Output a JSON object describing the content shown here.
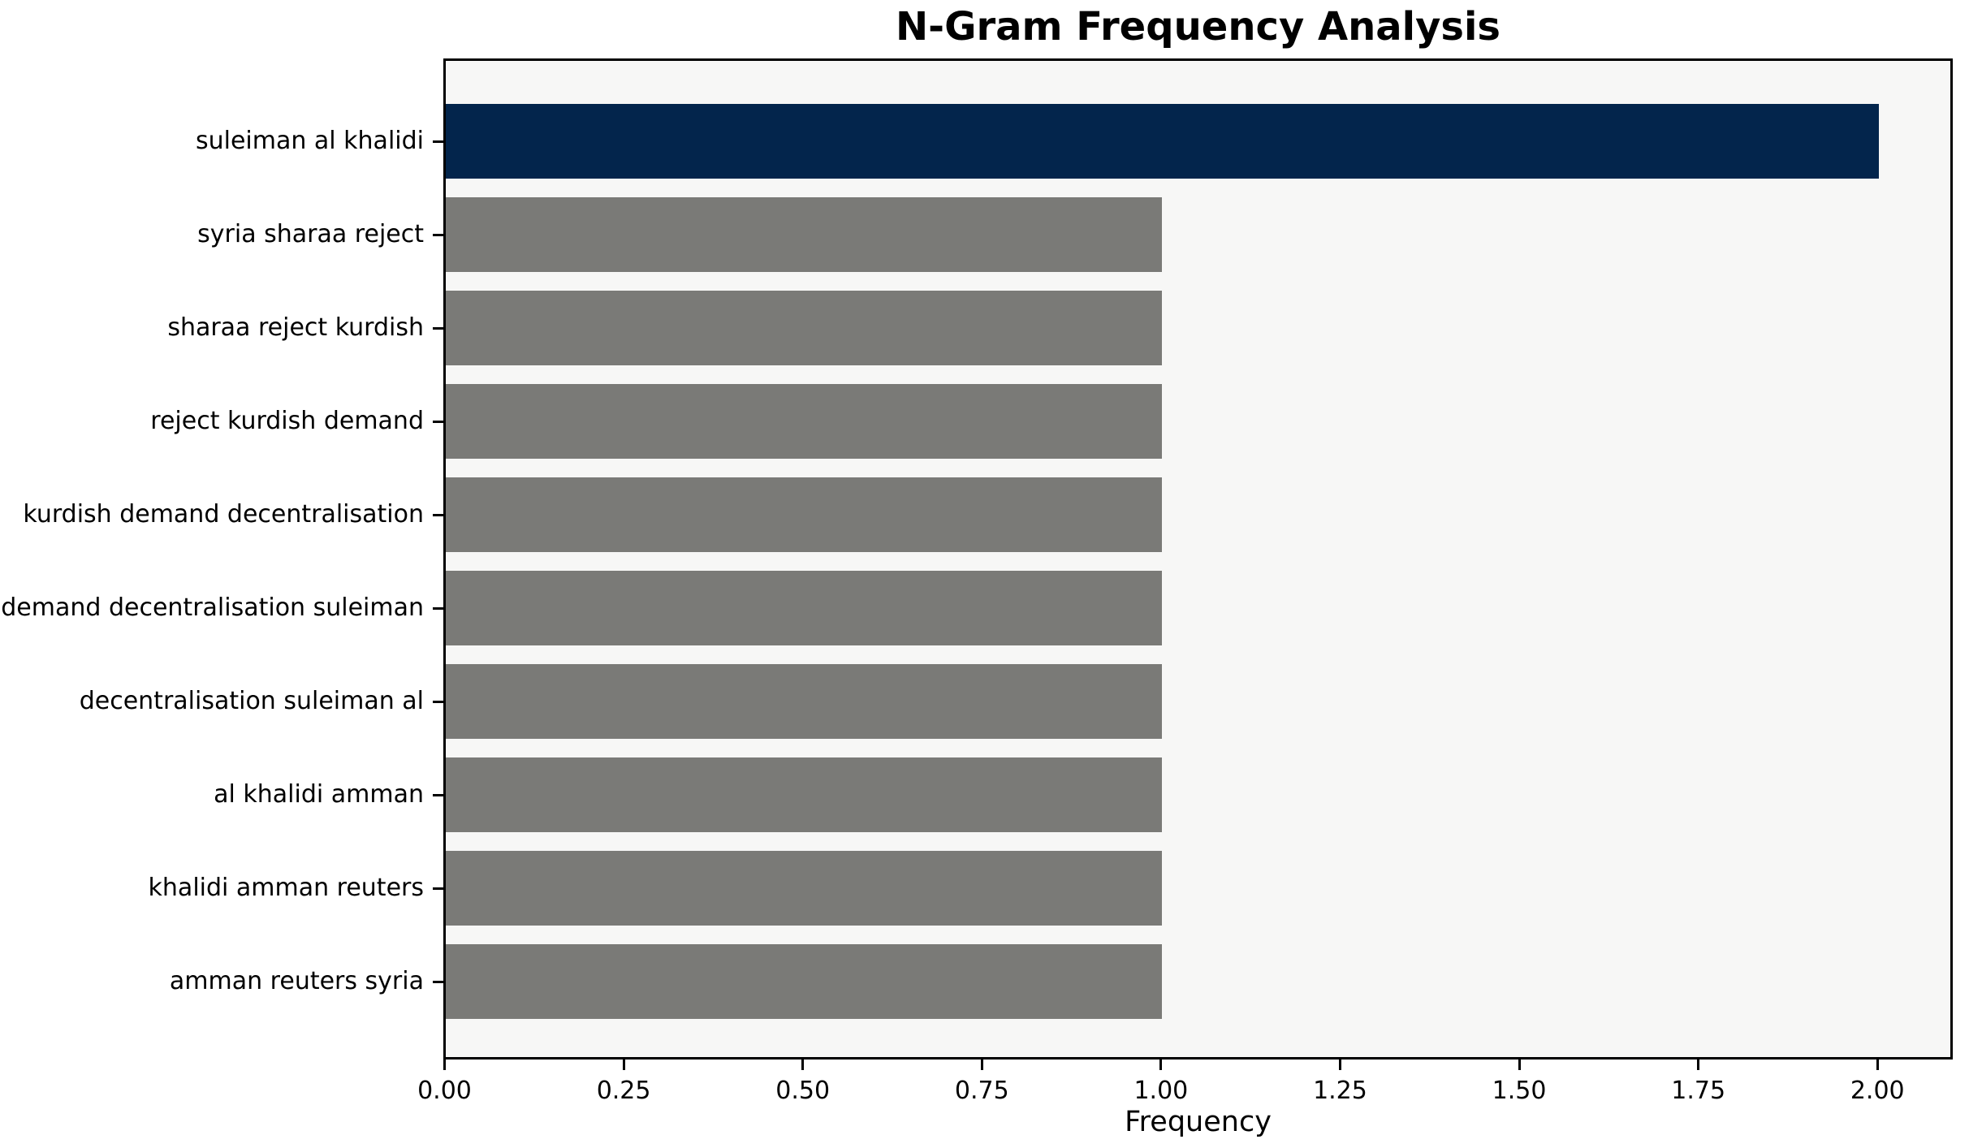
{
  "figure": {
    "background": "#ffffff"
  },
  "chart_data": {
    "type": "bar",
    "orientation": "horizontal",
    "title": "N-Gram Frequency Analysis",
    "xlabel": "Frequency",
    "categories": [
      "suleiman al khalidi",
      "syria sharaa reject",
      "sharaa reject kurdish",
      "reject kurdish demand",
      "kurdish demand decentralisation",
      "demand decentralisation suleiman",
      "decentralisation suleiman al",
      "al khalidi amman",
      "khalidi amman reuters",
      "amman reuters syria"
    ],
    "values": [
      2,
      1,
      1,
      1,
      1,
      1,
      1,
      1,
      1,
      1
    ],
    "bar_colors": [
      "#03254c",
      "#7a7a77",
      "#7a7a77",
      "#7a7a77",
      "#7a7a77",
      "#7a7a77",
      "#7a7a77",
      "#7a7a77",
      "#7a7a77",
      "#7a7a77"
    ],
    "highlight_color": "#03254c",
    "default_color": "#7a7a77",
    "plot_background": "#f7f7f6",
    "spine_color": "#000000",
    "xticks": [
      0,
      0.25,
      0.5,
      0.75,
      1.0,
      1.25,
      1.5,
      1.75,
      2.0
    ],
    "xtick_labels": [
      "0.00",
      "0.25",
      "0.50",
      "0.75",
      "1.00",
      "1.25",
      "1.50",
      "1.75",
      "2.00"
    ],
    "xlim": [
      0,
      2.1
    ],
    "grid": false,
    "legend_position": "none"
  }
}
